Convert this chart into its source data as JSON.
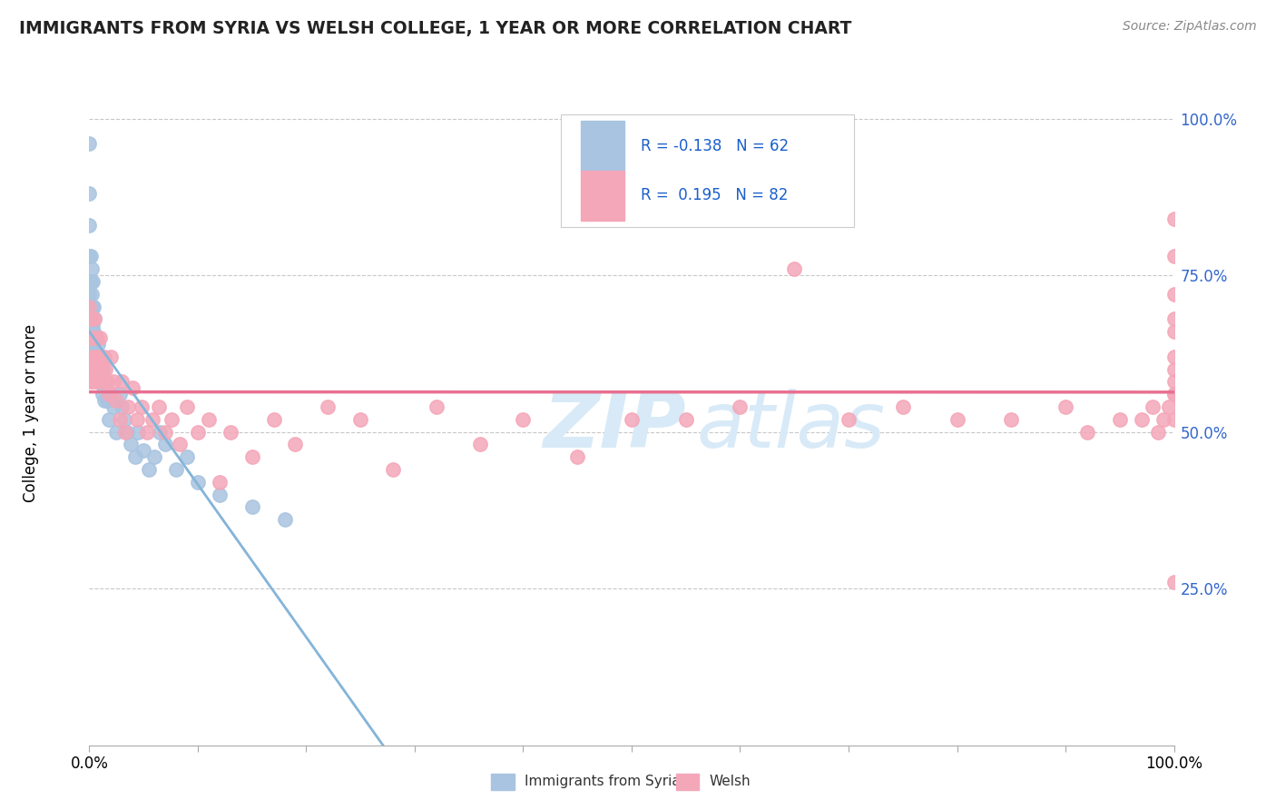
{
  "title": "IMMIGRANTS FROM SYRIA VS WELSH COLLEGE, 1 YEAR OR MORE CORRELATION CHART",
  "source_text": "Source: ZipAtlas.com",
  "ylabel": "College, 1 year or more",
  "ytick_labels": [
    "25.0%",
    "50.0%",
    "75.0%",
    "100.0%"
  ],
  "ytick_values": [
    0.25,
    0.5,
    0.75,
    1.0
  ],
  "legend_entry1_color": "#a8c4e0",
  "legend_entry2_color": "#f4a7b9",
  "legend_entry1_label": "Immigrants from Syria",
  "legend_entry2_label": "Welsh",
  "syria_scatter_color": "#a8c4e0",
  "welsh_scatter_color": "#f4a7b9",
  "syria_line_color": "#85b5d9",
  "welsh_line_color": "#e87090",
  "background_color": "#ffffff",
  "watermark_color": "#d8eaf7",
  "syria_points_x": [
    0.0,
    0.0,
    0.0,
    0.0,
    0.0,
    0.001,
    0.001,
    0.001,
    0.001,
    0.002,
    0.002,
    0.002,
    0.002,
    0.003,
    0.003,
    0.003,
    0.003,
    0.003,
    0.004,
    0.004,
    0.004,
    0.005,
    0.005,
    0.006,
    0.006,
    0.007,
    0.007,
    0.008,
    0.008,
    0.009,
    0.009,
    0.01,
    0.01,
    0.011,
    0.012,
    0.012,
    0.013,
    0.014,
    0.015,
    0.016,
    0.018,
    0.02,
    0.022,
    0.025,
    0.028,
    0.03,
    0.032,
    0.035,
    0.038,
    0.042,
    0.045,
    0.05,
    0.055,
    0.06,
    0.065,
    0.07,
    0.08,
    0.09,
    0.1,
    0.12,
    0.15,
    0.18
  ],
  "syria_points_y": [
    0.96,
    0.88,
    0.83,
    0.78,
    0.72,
    0.78,
    0.74,
    0.7,
    0.65,
    0.76,
    0.72,
    0.68,
    0.63,
    0.74,
    0.7,
    0.67,
    0.64,
    0.6,
    0.7,
    0.66,
    0.62,
    0.68,
    0.63,
    0.65,
    0.6,
    0.62,
    0.58,
    0.64,
    0.6,
    0.62,
    0.58,
    0.62,
    0.58,
    0.6,
    0.6,
    0.56,
    0.58,
    0.55,
    0.58,
    0.55,
    0.52,
    0.56,
    0.54,
    0.5,
    0.56,
    0.54,
    0.52,
    0.5,
    0.48,
    0.46,
    0.5,
    0.47,
    0.44,
    0.46,
    0.5,
    0.48,
    0.44,
    0.46,
    0.42,
    0.4,
    0.38,
    0.36
  ],
  "welsh_points_x": [
    0.0,
    0.0,
    0.001,
    0.001,
    0.002,
    0.002,
    0.003,
    0.003,
    0.004,
    0.005,
    0.005,
    0.006,
    0.007,
    0.007,
    0.008,
    0.009,
    0.01,
    0.011,
    0.012,
    0.014,
    0.015,
    0.016,
    0.018,
    0.02,
    0.022,
    0.025,
    0.028,
    0.03,
    0.033,
    0.036,
    0.04,
    0.044,
    0.048,
    0.053,
    0.058,
    0.064,
    0.07,
    0.076,
    0.083,
    0.09,
    0.1,
    0.11,
    0.12,
    0.13,
    0.15,
    0.17,
    0.19,
    0.22,
    0.25,
    0.28,
    0.32,
    0.36,
    0.4,
    0.45,
    0.5,
    0.55,
    0.6,
    0.65,
    0.7,
    0.75,
    0.8,
    0.85,
    0.9,
    0.92,
    0.95,
    0.97,
    0.98,
    0.985,
    0.99,
    0.995,
    1.0,
    1.0,
    1.0,
    1.0,
    1.0,
    1.0,
    1.0,
    1.0,
    1.0,
    1.0,
    1.0,
    1.0
  ],
  "welsh_points_y": [
    0.7,
    0.6,
    0.65,
    0.58,
    0.68,
    0.6,
    0.65,
    0.58,
    0.62,
    0.68,
    0.6,
    0.62,
    0.65,
    0.58,
    0.6,
    0.62,
    0.65,
    0.6,
    0.58,
    0.62,
    0.6,
    0.58,
    0.56,
    0.62,
    0.58,
    0.55,
    0.52,
    0.58,
    0.5,
    0.54,
    0.57,
    0.52,
    0.54,
    0.5,
    0.52,
    0.54,
    0.5,
    0.52,
    0.48,
    0.54,
    0.5,
    0.52,
    0.42,
    0.5,
    0.46,
    0.52,
    0.48,
    0.54,
    0.52,
    0.44,
    0.54,
    0.48,
    0.52,
    0.46,
    0.52,
    0.52,
    0.54,
    0.76,
    0.52,
    0.54,
    0.52,
    0.52,
    0.54,
    0.5,
    0.52,
    0.52,
    0.54,
    0.5,
    0.52,
    0.54,
    0.26,
    0.68,
    0.6,
    0.56,
    0.52,
    0.62,
    0.56,
    0.58,
    0.66,
    0.72,
    0.78,
    0.84
  ]
}
